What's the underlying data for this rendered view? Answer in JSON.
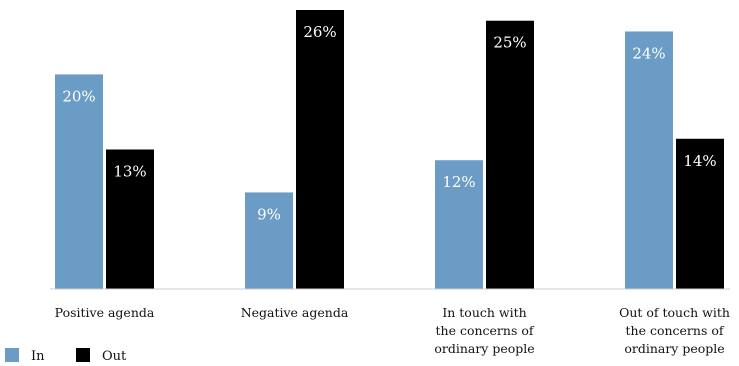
{
  "chart_data": {
    "type": "bar",
    "categories": [
      [
        "Positive agenda"
      ],
      [
        "Negative agenda"
      ],
      [
        "In touch with",
        "the concerns of",
        "ordinary people"
      ],
      [
        "Out of touch with",
        "the concerns of",
        "ordinary people"
      ]
    ],
    "series": [
      {
        "name": "In",
        "color": "#6a9cc6",
        "values": [
          20,
          9,
          12,
          24
        ],
        "labels": [
          "20%",
          "9%",
          "12%",
          "24%"
        ]
      },
      {
        "name": "Out",
        "color": "#000000",
        "values": [
          13,
          26,
          25,
          14
        ],
        "labels": [
          "13%",
          "26%",
          "25%",
          "14%"
        ]
      }
    ],
    "title": "",
    "xlabel": "",
    "ylabel": "",
    "ylim": [
      0,
      26
    ],
    "grid": false,
    "legend": "bottom-left"
  }
}
